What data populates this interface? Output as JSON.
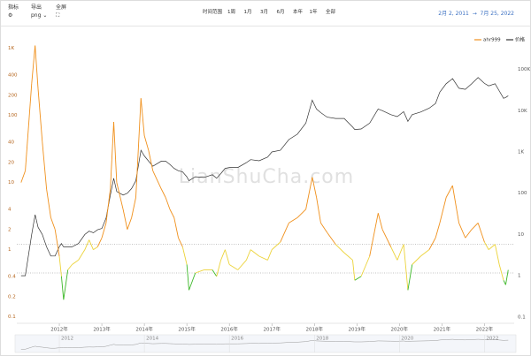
{
  "toolbar": {
    "indicator": "指标",
    "export": "导出",
    "format": "png",
    "fullscreen": "全屏",
    "range_label": "时间范围",
    "ranges": [
      "1周",
      "1月",
      "3月",
      "6月",
      "本年",
      "1年",
      "全部"
    ],
    "date_start": "2月 2, 2011",
    "date_end": "7月 25, 2022"
  },
  "chart_data": {
    "type": "line",
    "watermark": "LianShuCha.com",
    "log_scale": true,
    "x": [
      2011.1,
      2011.2,
      2011.35,
      2011.43,
      2011.5,
      2011.6,
      2011.7,
      2011.8,
      2011.9,
      2012.0,
      2012.05,
      2012.1,
      2012.2,
      2012.3,
      2012.45,
      2012.6,
      2012.7,
      2012.8,
      2012.9,
      2013.0,
      2013.1,
      2013.2,
      2013.28,
      2013.35,
      2013.5,
      2013.6,
      2013.7,
      2013.8,
      2013.92,
      2014.0,
      2014.1,
      2014.2,
      2014.4,
      2014.5,
      2014.6,
      2014.7,
      2014.8,
      2014.9,
      2015.0,
      2015.05,
      2015.2,
      2015.4,
      2015.6,
      2015.7,
      2015.8,
      2015.9,
      2016.0,
      2016.2,
      2016.4,
      2016.5,
      2016.7,
      2016.9,
      2017.0,
      2017.2,
      2017.4,
      2017.6,
      2017.8,
      2017.95,
      2018.05,
      2018.15,
      2018.3,
      2018.5,
      2018.7,
      2018.9,
      2018.95,
      2019.1,
      2019.3,
      2019.5,
      2019.6,
      2019.8,
      2019.95,
      2020.1,
      2020.2,
      2020.3,
      2020.5,
      2020.7,
      2020.85,
      2020.95,
      2021.1,
      2021.25,
      2021.4,
      2021.55,
      2021.7,
      2021.85,
      2022.0,
      2022.1,
      2022.25,
      2022.35,
      2022.45,
      2022.5,
      2022.56
    ],
    "series": [
      {
        "name": "ahr999",
        "color": "#f0901c",
        "axis": "y",
        "values": [
          10,
          15,
          300,
          1100,
          250,
          40,
          8,
          3,
          2,
          0.8,
          0.4,
          0.18,
          0.5,
          0.6,
          0.7,
          1.0,
          1.4,
          1.0,
          1.1,
          1.5,
          2.5,
          8,
          80,
          10,
          4,
          2,
          3,
          6,
          180,
          50,
          30,
          15,
          8,
          6,
          4,
          3,
          1.5,
          1.1,
          0.6,
          0.25,
          0.45,
          0.5,
          0.5,
          0.4,
          0.7,
          1.0,
          0.6,
          0.5,
          0.7,
          1.0,
          0.8,
          0.7,
          1.0,
          1.3,
          2.5,
          3,
          4,
          12,
          6,
          2.5,
          1.8,
          1.2,
          0.9,
          0.7,
          0.35,
          0.4,
          0.8,
          3.5,
          2,
          1.1,
          0.7,
          1.2,
          0.25,
          0.6,
          0.8,
          1.0,
          1.5,
          2.5,
          6,
          9,
          2.5,
          1.5,
          2,
          2.5,
          1.3,
          1.0,
          1.2,
          0.6,
          0.35,
          0.3,
          0.5
        ]
      },
      {
        "name": "价格",
        "color": "#333333",
        "axis": "y2",
        "values": [
          1,
          1,
          10,
          30,
          15,
          10,
          5,
          3,
          3,
          5,
          6,
          5,
          5,
          5,
          6,
          10,
          12,
          11,
          13,
          14,
          25,
          90,
          230,
          110,
          90,
          100,
          130,
          200,
          1100,
          800,
          600,
          450,
          600,
          600,
          500,
          400,
          350,
          330,
          250,
          200,
          250,
          240,
          280,
          230,
          300,
          400,
          420,
          420,
          550,
          650,
          610,
          750,
          1000,
          1100,
          2000,
          2700,
          5000,
          18000,
          11000,
          9000,
          7000,
          6500,
          6500,
          4000,
          3500,
          3600,
          5000,
          11000,
          10000,
          8000,
          7200,
          9500,
          5500,
          8000,
          9300,
          11500,
          15000,
          28000,
          45000,
          60000,
          35000,
          33000,
          45000,
          64000,
          46000,
          40000,
          45000,
          30000,
          20000,
          21000,
          23000
        ]
      }
    ],
    "thresholds": [
      1.2,
      0.45
    ],
    "threshold_colors": [
      "#f0901c",
      "#ecd33a",
      "#3cb828"
    ],
    "xlim": [
      2011,
      2022.7
    ],
    "xticks": [
      {
        "value": 2012,
        "label": "2012年"
      },
      {
        "value": 2013,
        "label": "2013年"
      },
      {
        "value": 2014,
        "label": "2014年"
      },
      {
        "value": 2015,
        "label": "2015年"
      },
      {
        "value": 2016,
        "label": "2016年"
      },
      {
        "value": 2017,
        "label": "2017年"
      },
      {
        "value": 2018,
        "label": "2018年"
      },
      {
        "value": 2019,
        "label": "2019年"
      },
      {
        "value": 2020,
        "label": "2020年"
      },
      {
        "value": 2021,
        "label": "2021年"
      },
      {
        "value": 2022,
        "label": "2022年"
      }
    ],
    "ylim": [
      0.08,
      1300
    ],
    "yticks": [
      0.1,
      0.2,
      0.4,
      1,
      2,
      4,
      10,
      20,
      40,
      100,
      200,
      400,
      {
        "value": 1000,
        "label": "1K"
      }
    ],
    "y2lim": [
      0.07,
      500000
    ],
    "y2ticks": [
      0.1,
      1,
      10,
      100,
      {
        "value": 1000,
        "label": "1K"
      },
      {
        "value": 10000,
        "label": "10K"
      },
      {
        "value": 100000,
        "label": "100K"
      }
    ],
    "navigator_xticks": [
      2012,
      2014,
      2016,
      2018,
      2020,
      2022
    ]
  }
}
